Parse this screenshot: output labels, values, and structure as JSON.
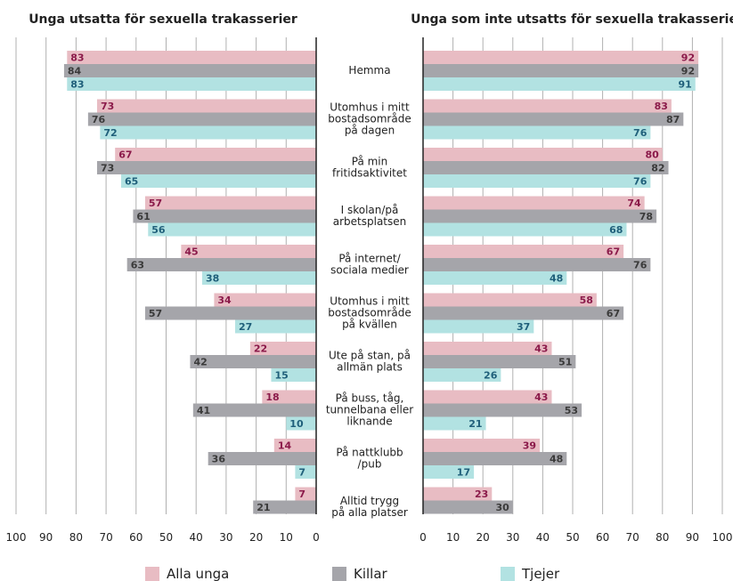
{
  "chart_data": [
    {
      "type": "bar",
      "orientation": "horizontal",
      "title": "Unga utsatta för sexuella trakasserier",
      "categories": [
        "Hemma",
        "Utomhus i mitt bostadsområde på dagen",
        "På min fritidsaktivitet",
        "I skolan/på arbetsplatsen",
        "På internet/ sociala medier",
        "Utomhus i mitt bostadsområde på kvällen",
        "Ute på stan, på allmän plats",
        "På buss, tåg, tunnelbana eller liknande",
        "På nattklubb /pub",
        "Alltid trygg på alla platser"
      ],
      "series": [
        {
          "name": "Alla unga",
          "values": [
            83,
            73,
            67,
            57,
            45,
            34,
            22,
            18,
            14,
            7
          ]
        },
        {
          "name": "Killar",
          "values": [
            84,
            76,
            73,
            61,
            63,
            57,
            42,
            41,
            36,
            21
          ]
        },
        {
          "name": "Tjejer",
          "values": [
            83,
            72,
            65,
            56,
            38,
            27,
            15,
            10,
            7,
            null
          ]
        }
      ],
      "xlim": [
        100,
        0
      ],
      "xticks": [
        "100",
        "90",
        "80",
        "70",
        "60",
        "50",
        "40",
        "30",
        "20",
        "10",
        "0"
      ],
      "grid": true
    },
    {
      "type": "bar",
      "orientation": "horizontal",
      "title": "Unga som inte utsatts för sexuella trakasserier",
      "categories": [
        "Hemma",
        "Utomhus i mitt bostadsområde på dagen",
        "På min fritidsaktivitet",
        "I skolan/på arbetsplatsen",
        "På internet/ sociala medier",
        "Utomhus i mitt bostadsområde på kvällen",
        "Ute på stan, på allmän plats",
        "På buss, tåg, tunnelbana eller liknande",
        "På nattklubb /pub",
        "Alltid trygg på alla platser"
      ],
      "series": [
        {
          "name": "Alla unga",
          "values": [
            92,
            83,
            80,
            74,
            67,
            58,
            43,
            43,
            39,
            23
          ]
        },
        {
          "name": "Killar",
          "values": [
            92,
            87,
            82,
            78,
            76,
            67,
            51,
            53,
            48,
            30
          ]
        },
        {
          "name": "Tjejer",
          "values": [
            91,
            76,
            76,
            68,
            48,
            37,
            26,
            21,
            17,
            null
          ]
        }
      ],
      "xlim": [
        0,
        100
      ],
      "xticks": [
        "0",
        "10",
        "20",
        "30",
        "40",
        "50",
        "60",
        "70",
        "80",
        "90",
        "100"
      ],
      "grid": true
    }
  ],
  "category_lines": [
    [
      "Hemma"
    ],
    [
      "Utomhus i mitt",
      "bostadsområde",
      "på dagen"
    ],
    [
      "På min",
      "fritidsaktivitet"
    ],
    [
      "I skolan/på",
      "arbetsplatsen"
    ],
    [
      "På internet/",
      "sociala medier"
    ],
    [
      "Utomhus i mitt",
      "bostadsområde",
      "på kvällen"
    ],
    [
      "Ute på stan, på",
      "allmän plats"
    ],
    [
      "På buss, tåg,",
      "tunnelbana eller",
      "liknande"
    ],
    [
      "På nattklubb",
      "/pub"
    ],
    [
      "Alltid trygg",
      "på alla platser"
    ]
  ],
  "legend": [
    {
      "label": "Alla unga",
      "color": "#e8bcc3"
    },
    {
      "label": "Killar",
      "color": "#a5a5aa"
    },
    {
      "label": "Tjejer",
      "color": "#b2e2e2"
    }
  ],
  "colors": {
    "alla_bar": "#e8bcc3",
    "killar_bar": "#a5a5aa",
    "tjejer_bar": "#b2e2e2",
    "alla_text": "#8b1a4a",
    "killar_text": "#3a3a3a",
    "tjejer_text": "#1f5f7a",
    "grid": "#b0b0b0",
    "axis": "#222222"
  }
}
